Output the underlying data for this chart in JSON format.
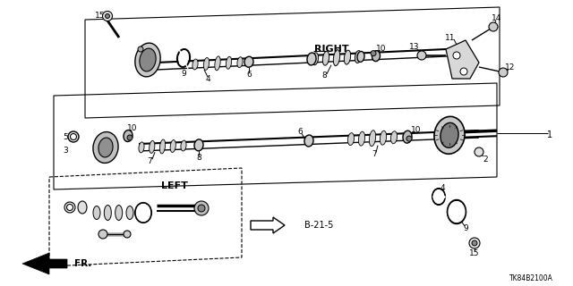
{
  "bg": "#ffffff",
  "lc": "#000000",
  "diagram_code": "TK84B2100A",
  "label_RIGHT": "RIGHT",
  "label_LEFT": "LEFT",
  "label_FR": "FR.",
  "label_B21": "B-21-5"
}
